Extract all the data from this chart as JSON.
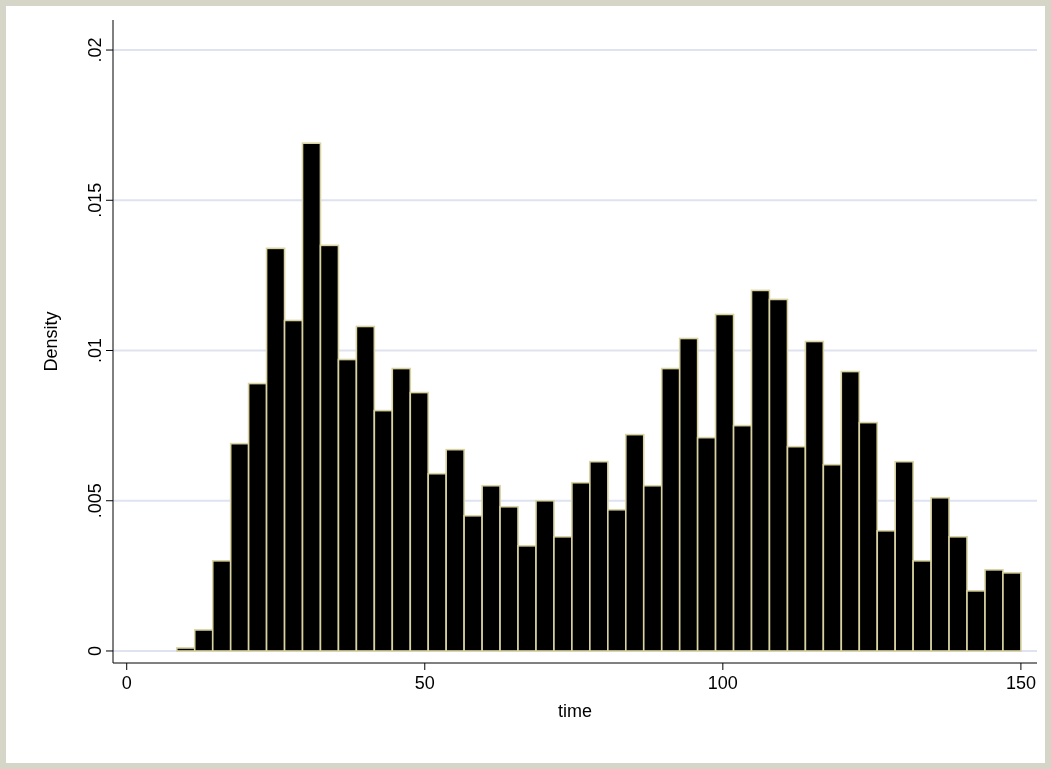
{
  "chart_data": {
    "type": "histogram",
    "xlabel": "time",
    "ylabel": "Density",
    "bins": [
      8.4,
      11.41,
      14.43,
      17.44,
      20.45,
      23.46,
      26.48,
      29.49,
      32.5,
      35.52,
      38.53,
      41.54,
      44.55,
      47.57,
      50.58,
      53.59,
      56.6,
      59.62,
      62.63,
      65.64,
      68.66,
      71.67,
      74.68,
      77.69,
      80.71,
      83.72,
      86.73,
      89.75,
      92.76,
      95.77,
      98.78,
      101.8,
      104.81,
      107.82,
      110.84,
      113.85,
      116.86,
      119.87,
      122.89,
      125.9,
      128.91,
      131.92,
      134.94,
      137.95,
      140.96,
      143.98,
      146.99,
      150
    ],
    "values": [
      0.0001,
      0.0007,
      0.003,
      0.0069,
      0.0089,
      0.0134,
      0.011,
      0.0169,
      0.0135,
      0.0097,
      0.0108,
      0.008,
      0.0094,
      0.0086,
      0.0059,
      0.0067,
      0.0045,
      0.0055,
      0.0048,
      0.0035,
      0.005,
      0.0038,
      0.0056,
      0.0063,
      0.0047,
      0.0072,
      0.0055,
      0.0094,
      0.0104,
      0.0071,
      0.0112,
      0.0075,
      0.012,
      0.0117,
      0.0068,
      0.0103,
      0.0062,
      0.0093,
      0.0076,
      0.004,
      0.0063,
      0.003,
      0.0051,
      0.0038,
      0.002,
      0.0027,
      0.0026
    ],
    "color": "#000000",
    "xlim": [
      -2.3,
      152.7
    ],
    "xticks": [
      0,
      50,
      100,
      150
    ],
    "ylim": [
      -0.0004,
      0.021
    ],
    "yticks": [
      {
        "value": 0,
        "label": "0"
      },
      {
        "value": 0.005,
        "label": ".005"
      },
      {
        "value": 0.01,
        "label": ".01"
      },
      {
        "value": 0.015,
        "label": ".015"
      },
      {
        "value": 0.02,
        "label": ".02"
      }
    ],
    "grid": "y"
  }
}
